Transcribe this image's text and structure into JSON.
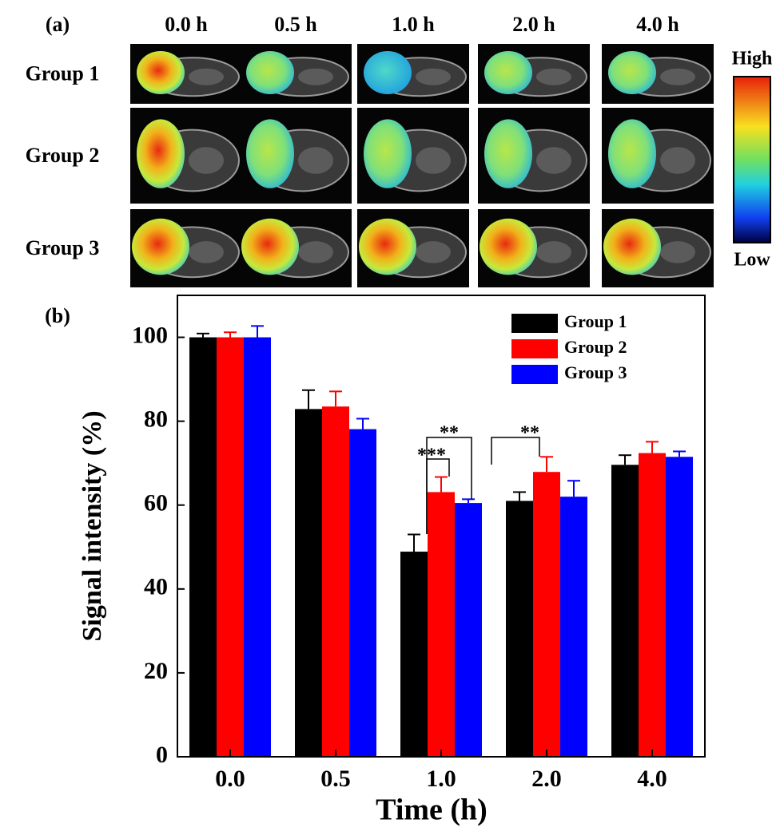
{
  "panel_a": {
    "label": "(a)",
    "columns": [
      "0.0 h",
      "0.5 h",
      "1.0 h",
      "2.0 h",
      "4.0 h"
    ],
    "rows": [
      "Group 1",
      "Group 2",
      "Group 3"
    ],
    "colorbar": {
      "high": "High",
      "low": "Low"
    }
  },
  "chart_data": {
    "type": "bar",
    "panel_label": "(b)",
    "x_label": "Time (h)",
    "y_label": "Signal intensity (%)",
    "categories": [
      "0.0",
      "0.5",
      "1.0",
      "2.0",
      "4.0"
    ],
    "series": [
      {
        "name": "Group 1",
        "color": "#000000",
        "values": [
          100,
          82.9,
          48.9,
          61.0,
          69.6
        ],
        "errors": [
          0.9,
          4.5,
          4.1,
          2.1,
          2.3
        ]
      },
      {
        "name": "Group 2",
        "color": "#ff0000",
        "values": [
          100,
          83.5,
          63.1,
          67.9,
          72.4
        ],
        "errors": [
          1.2,
          3.6,
          3.6,
          3.6,
          2.7
        ]
      },
      {
        "name": "Group 3",
        "color": "#0000ff",
        "values": [
          100,
          78.1,
          60.5,
          62.0,
          71.5
        ],
        "errors": [
          2.7,
          2.5,
          0.9,
          3.8,
          1.3
        ]
      }
    ],
    "ylim": [
      0,
      110
    ],
    "yticks": [
      0,
      20,
      40,
      60,
      80,
      100
    ],
    "legend": "upper right",
    "annotations": [
      "**",
      "***",
      "**"
    ]
  }
}
